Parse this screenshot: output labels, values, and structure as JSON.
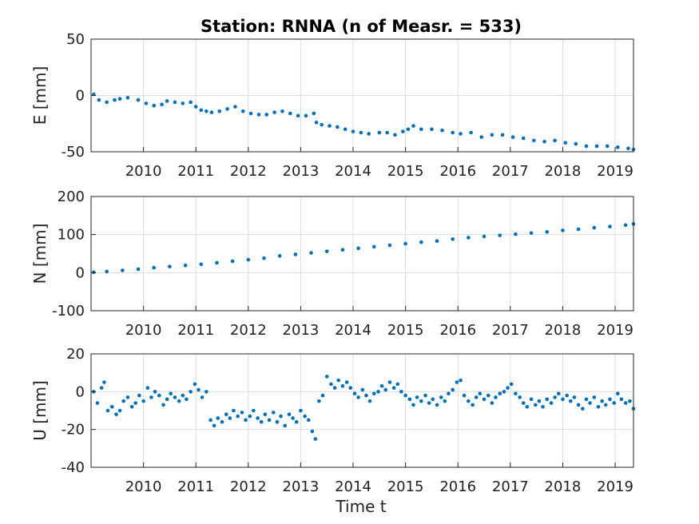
{
  "chart_data": {
    "title": "Station: RNNA (n of Measr. = 533)",
    "xlabel": "Time t",
    "xlim": [
      2009.0,
      2019.35
    ],
    "xticks": [
      "2010",
      "2011",
      "2012",
      "2013",
      "2014",
      "2015",
      "2016",
      "2017",
      "2018",
      "2019"
    ],
    "grid": true,
    "color": "#0072BD",
    "panels": [
      {
        "type": "scatter",
        "ylabel": "E [mm]",
        "ylim": [
          -50,
          50
        ],
        "yticks": [
          "50",
          "0",
          "-50"
        ],
        "points": [
          [
            2009.05,
            1
          ],
          [
            2009.15,
            -4
          ],
          [
            2009.3,
            -6
          ],
          [
            2009.45,
            -4
          ],
          [
            2009.55,
            -3
          ],
          [
            2009.7,
            -2
          ],
          [
            2009.9,
            -4
          ],
          [
            2010.05,
            -7
          ],
          [
            2010.2,
            -9
          ],
          [
            2010.35,
            -8
          ],
          [
            2010.45,
            -5
          ],
          [
            2010.6,
            -6
          ],
          [
            2010.75,
            -7
          ],
          [
            2010.9,
            -6
          ],
          [
            2011.0,
            -10
          ],
          [
            2011.1,
            -13
          ],
          [
            2011.2,
            -14
          ],
          [
            2011.3,
            -15
          ],
          [
            2011.45,
            -14
          ],
          [
            2011.6,
            -12
          ],
          [
            2011.75,
            -10
          ],
          [
            2011.9,
            -14
          ],
          [
            2012.05,
            -16
          ],
          [
            2012.2,
            -17
          ],
          [
            2012.35,
            -17
          ],
          [
            2012.5,
            -15
          ],
          [
            2012.65,
            -14
          ],
          [
            2012.8,
            -16
          ],
          [
            2012.95,
            -18
          ],
          [
            2013.1,
            -18
          ],
          [
            2013.25,
            -16
          ],
          [
            2013.3,
            -24
          ],
          [
            2013.4,
            -26
          ],
          [
            2013.55,
            -27
          ],
          [
            2013.7,
            -28
          ],
          [
            2013.85,
            -30
          ],
          [
            2014.0,
            -32
          ],
          [
            2014.15,
            -33
          ],
          [
            2014.3,
            -34
          ],
          [
            2014.5,
            -33
          ],
          [
            2014.65,
            -33
          ],
          [
            2014.8,
            -35
          ],
          [
            2014.95,
            -32
          ],
          [
            2015.05,
            -30
          ],
          [
            2015.15,
            -27
          ],
          [
            2015.3,
            -30
          ],
          [
            2015.5,
            -30
          ],
          [
            2015.7,
            -31
          ],
          [
            2015.9,
            -33
          ],
          [
            2016.05,
            -34
          ],
          [
            2016.25,
            -33
          ],
          [
            2016.45,
            -37
          ],
          [
            2016.65,
            -35
          ],
          [
            2016.85,
            -35
          ],
          [
            2017.05,
            -37
          ],
          [
            2017.25,
            -38
          ],
          [
            2017.45,
            -40
          ],
          [
            2017.65,
            -41
          ],
          [
            2017.85,
            -40
          ],
          [
            2018.05,
            -42
          ],
          [
            2018.25,
            -43
          ],
          [
            2018.45,
            -45
          ],
          [
            2018.65,
            -45
          ],
          [
            2018.85,
            -45
          ],
          [
            2019.05,
            -46
          ],
          [
            2019.25,
            -47
          ],
          [
            2019.35,
            -48
          ]
        ]
      },
      {
        "type": "scatter",
        "ylabel": "N [mm]",
        "ylim": [
          -100,
          200
        ],
        "yticks": [
          "200",
          "100",
          "0",
          "-100"
        ],
        "points": [
          [
            2009.05,
            1
          ],
          [
            2009.3,
            3
          ],
          [
            2009.6,
            6
          ],
          [
            2009.9,
            9
          ],
          [
            2010.2,
            13
          ],
          [
            2010.5,
            16
          ],
          [
            2010.8,
            19
          ],
          [
            2011.1,
            22
          ],
          [
            2011.4,
            26
          ],
          [
            2011.7,
            30
          ],
          [
            2012.0,
            34
          ],
          [
            2012.3,
            38
          ],
          [
            2012.6,
            44
          ],
          [
            2012.9,
            48
          ],
          [
            2013.2,
            52
          ],
          [
            2013.5,
            56
          ],
          [
            2013.8,
            60
          ],
          [
            2014.1,
            64
          ],
          [
            2014.4,
            68
          ],
          [
            2014.7,
            72
          ],
          [
            2015.0,
            76
          ],
          [
            2015.3,
            80
          ],
          [
            2015.6,
            83
          ],
          [
            2015.9,
            88
          ],
          [
            2016.2,
            92
          ],
          [
            2016.5,
            95
          ],
          [
            2016.8,
            98
          ],
          [
            2017.1,
            101
          ],
          [
            2017.4,
            104
          ],
          [
            2017.7,
            107
          ],
          [
            2018.0,
            111
          ],
          [
            2018.3,
            114
          ],
          [
            2018.6,
            118
          ],
          [
            2018.9,
            121
          ],
          [
            2019.2,
            125
          ],
          [
            2019.35,
            128
          ]
        ]
      },
      {
        "type": "scatter",
        "ylabel": "U [mm]",
        "ylim": [
          -40,
          20
        ],
        "yticks": [
          "20",
          "0",
          "-20",
          "-40"
        ],
        "points": [
          [
            2009.05,
            0
          ],
          [
            2009.12,
            -6
          ],
          [
            2009.2,
            2
          ],
          [
            2009.25,
            5
          ],
          [
            2009.32,
            -10
          ],
          [
            2009.4,
            -8
          ],
          [
            2009.48,
            -12
          ],
          [
            2009.55,
            -10
          ],
          [
            2009.62,
            -5
          ],
          [
            2009.7,
            -3
          ],
          [
            2009.78,
            -8
          ],
          [
            2009.85,
            -6
          ],
          [
            2009.92,
            -2
          ],
          [
            2010.0,
            -5
          ],
          [
            2010.08,
            2
          ],
          [
            2010.15,
            -3
          ],
          [
            2010.22,
            0
          ],
          [
            2010.3,
            -2
          ],
          [
            2010.38,
            -7
          ],
          [
            2010.45,
            -4
          ],
          [
            2010.52,
            -1
          ],
          [
            2010.6,
            -3
          ],
          [
            2010.68,
            -5
          ],
          [
            2010.75,
            -2
          ],
          [
            2010.82,
            -4
          ],
          [
            2010.9,
            0
          ],
          [
            2010.98,
            4
          ],
          [
            2011.05,
            1
          ],
          [
            2011.12,
            -3
          ],
          [
            2011.2,
            0
          ],
          [
            2011.28,
            -15
          ],
          [
            2011.35,
            -18
          ],
          [
            2011.42,
            -14
          ],
          [
            2011.5,
            -16
          ],
          [
            2011.58,
            -12
          ],
          [
            2011.65,
            -14
          ],
          [
            2011.72,
            -10
          ],
          [
            2011.8,
            -13
          ],
          [
            2011.88,
            -11
          ],
          [
            2011.95,
            -15
          ],
          [
            2012.03,
            -13
          ],
          [
            2012.1,
            -10
          ],
          [
            2012.18,
            -14
          ],
          [
            2012.25,
            -16
          ],
          [
            2012.32,
            -12
          ],
          [
            2012.4,
            -15
          ],
          [
            2012.48,
            -11
          ],
          [
            2012.55,
            -16
          ],
          [
            2012.62,
            -13
          ],
          [
            2012.7,
            -18
          ],
          [
            2012.78,
            -12
          ],
          [
            2012.85,
            -14
          ],
          [
            2012.92,
            -16
          ],
          [
            2013.0,
            -10
          ],
          [
            2013.08,
            -13
          ],
          [
            2013.15,
            -15
          ],
          [
            2013.22,
            -21
          ],
          [
            2013.28,
            -25
          ],
          [
            2013.35,
            -5
          ],
          [
            2013.42,
            -2
          ],
          [
            2013.5,
            8
          ],
          [
            2013.58,
            4
          ],
          [
            2013.65,
            2
          ],
          [
            2013.72,
            6
          ],
          [
            2013.8,
            3
          ],
          [
            2013.88,
            5
          ],
          [
            2013.95,
            2
          ],
          [
            2014.03,
            -1
          ],
          [
            2014.1,
            -3
          ],
          [
            2014.18,
            1
          ],
          [
            2014.25,
            -2
          ],
          [
            2014.32,
            -5
          ],
          [
            2014.4,
            -1
          ],
          [
            2014.48,
            0
          ],
          [
            2014.55,
            3
          ],
          [
            2014.62,
            1
          ],
          [
            2014.7,
            5
          ],
          [
            2014.78,
            2
          ],
          [
            2014.85,
            4
          ],
          [
            2014.92,
            0
          ],
          [
            2015.0,
            -2
          ],
          [
            2015.08,
            -4
          ],
          [
            2015.15,
            -7
          ],
          [
            2015.22,
            -3
          ],
          [
            2015.3,
            -5
          ],
          [
            2015.38,
            -2
          ],
          [
            2015.45,
            -6
          ],
          [
            2015.52,
            -4
          ],
          [
            2015.6,
            -7
          ],
          [
            2015.68,
            -3
          ],
          [
            2015.75,
            -5
          ],
          [
            2015.82,
            -1
          ],
          [
            2015.9,
            1
          ],
          [
            2015.98,
            5
          ],
          [
            2016.05,
            6
          ],
          [
            2016.12,
            -2
          ],
          [
            2016.2,
            -5
          ],
          [
            2016.28,
            -7
          ],
          [
            2016.35,
            -3
          ],
          [
            2016.42,
            -1
          ],
          [
            2016.5,
            -4
          ],
          [
            2016.58,
            -2
          ],
          [
            2016.65,
            -6
          ],
          [
            2016.72,
            -3
          ],
          [
            2016.8,
            -1
          ],
          [
            2016.88,
            0
          ],
          [
            2016.95,
            2
          ],
          [
            2017.02,
            4
          ],
          [
            2017.1,
            -1
          ],
          [
            2017.18,
            -3
          ],
          [
            2017.25,
            -6
          ],
          [
            2017.32,
            -8
          ],
          [
            2017.4,
            -4
          ],
          [
            2017.48,
            -7
          ],
          [
            2017.55,
            -5
          ],
          [
            2017.62,
            -8
          ],
          [
            2017.7,
            -4
          ],
          [
            2017.78,
            -6
          ],
          [
            2017.85,
            -3
          ],
          [
            2017.92,
            -1
          ],
          [
            2018.0,
            -4
          ],
          [
            2018.08,
            -2
          ],
          [
            2018.15,
            -5
          ],
          [
            2018.22,
            -3
          ],
          [
            2018.3,
            -7
          ],
          [
            2018.38,
            -9
          ],
          [
            2018.45,
            -4
          ],
          [
            2018.52,
            -6
          ],
          [
            2018.6,
            -3
          ],
          [
            2018.68,
            -8
          ],
          [
            2018.75,
            -5
          ],
          [
            2018.82,
            -7
          ],
          [
            2018.9,
            -4
          ],
          [
            2018.98,
            -6
          ],
          [
            2019.05,
            -1
          ],
          [
            2019.12,
            -4
          ],
          [
            2019.2,
            -6
          ],
          [
            2019.28,
            -5
          ],
          [
            2019.35,
            -9
          ]
        ]
      }
    ]
  }
}
